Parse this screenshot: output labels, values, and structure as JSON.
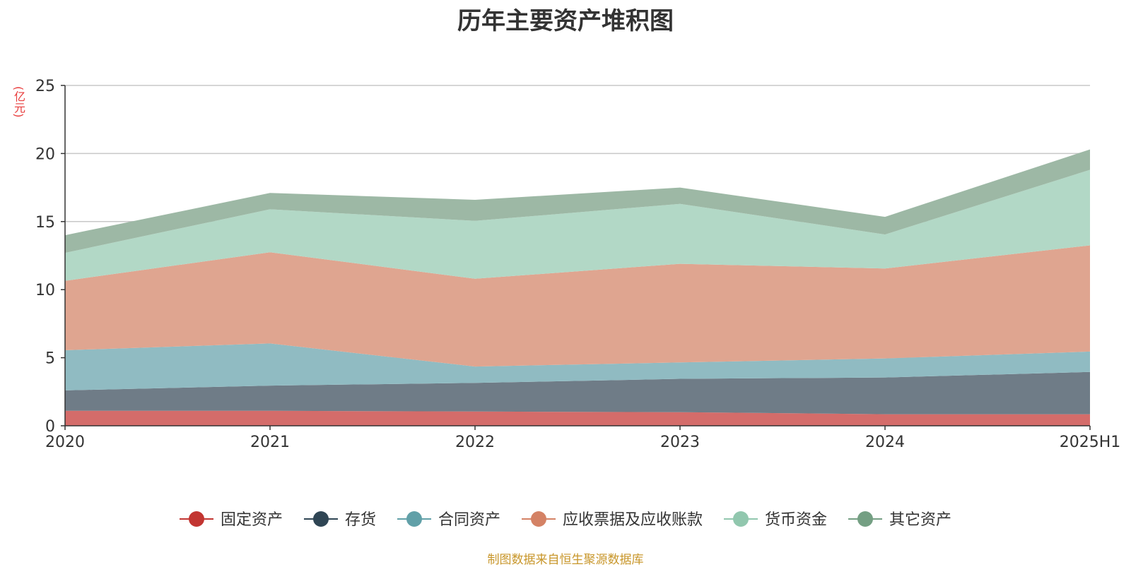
{
  "chart_data": {
    "type": "area",
    "stacked": true,
    "title": "历年主要资产堆积图",
    "unit_label": "(亿元)",
    "categories": [
      "2020",
      "2021",
      "2022",
      "2023",
      "2024",
      "2025H1"
    ],
    "ylim": [
      0,
      25
    ],
    "yticks": [
      0,
      5,
      10,
      15,
      20,
      25
    ],
    "grid": true,
    "legend_position": "bottom",
    "series": [
      {
        "name": "固定资产",
        "color": "#c23531",
        "fill": "#d46c6a",
        "values": [
          1.1,
          1.1,
          1.05,
          1.0,
          0.85,
          0.85
        ]
      },
      {
        "name": "存货",
        "color": "#2f4554",
        "fill": "#6f7c87",
        "values": [
          1.5,
          1.85,
          2.1,
          2.45,
          2.7,
          3.1
        ]
      },
      {
        "name": "合同资产",
        "color": "#61a0a8",
        "fill": "#90bbc2",
        "values": [
          2.95,
          3.1,
          1.2,
          1.2,
          1.4,
          1.5
        ]
      },
      {
        "name": "应收票据及应收账款",
        "color": "#d48265",
        "fill": "#dfa590",
        "values": [
          5.1,
          6.7,
          6.45,
          7.25,
          6.6,
          7.8
        ]
      },
      {
        "name": "货币资金",
        "color": "#91c7ae",
        "fill": "#b2d8c6",
        "values": [
          2.05,
          3.15,
          4.25,
          4.4,
          2.5,
          5.55
        ]
      },
      {
        "name": "其它资产",
        "color": "#749f83",
        "fill": "#9db8a5",
        "values": [
          1.3,
          1.2,
          1.55,
          1.2,
          1.3,
          1.5
        ]
      }
    ]
  },
  "source_note": "制图数据来自恒生聚源数据库"
}
